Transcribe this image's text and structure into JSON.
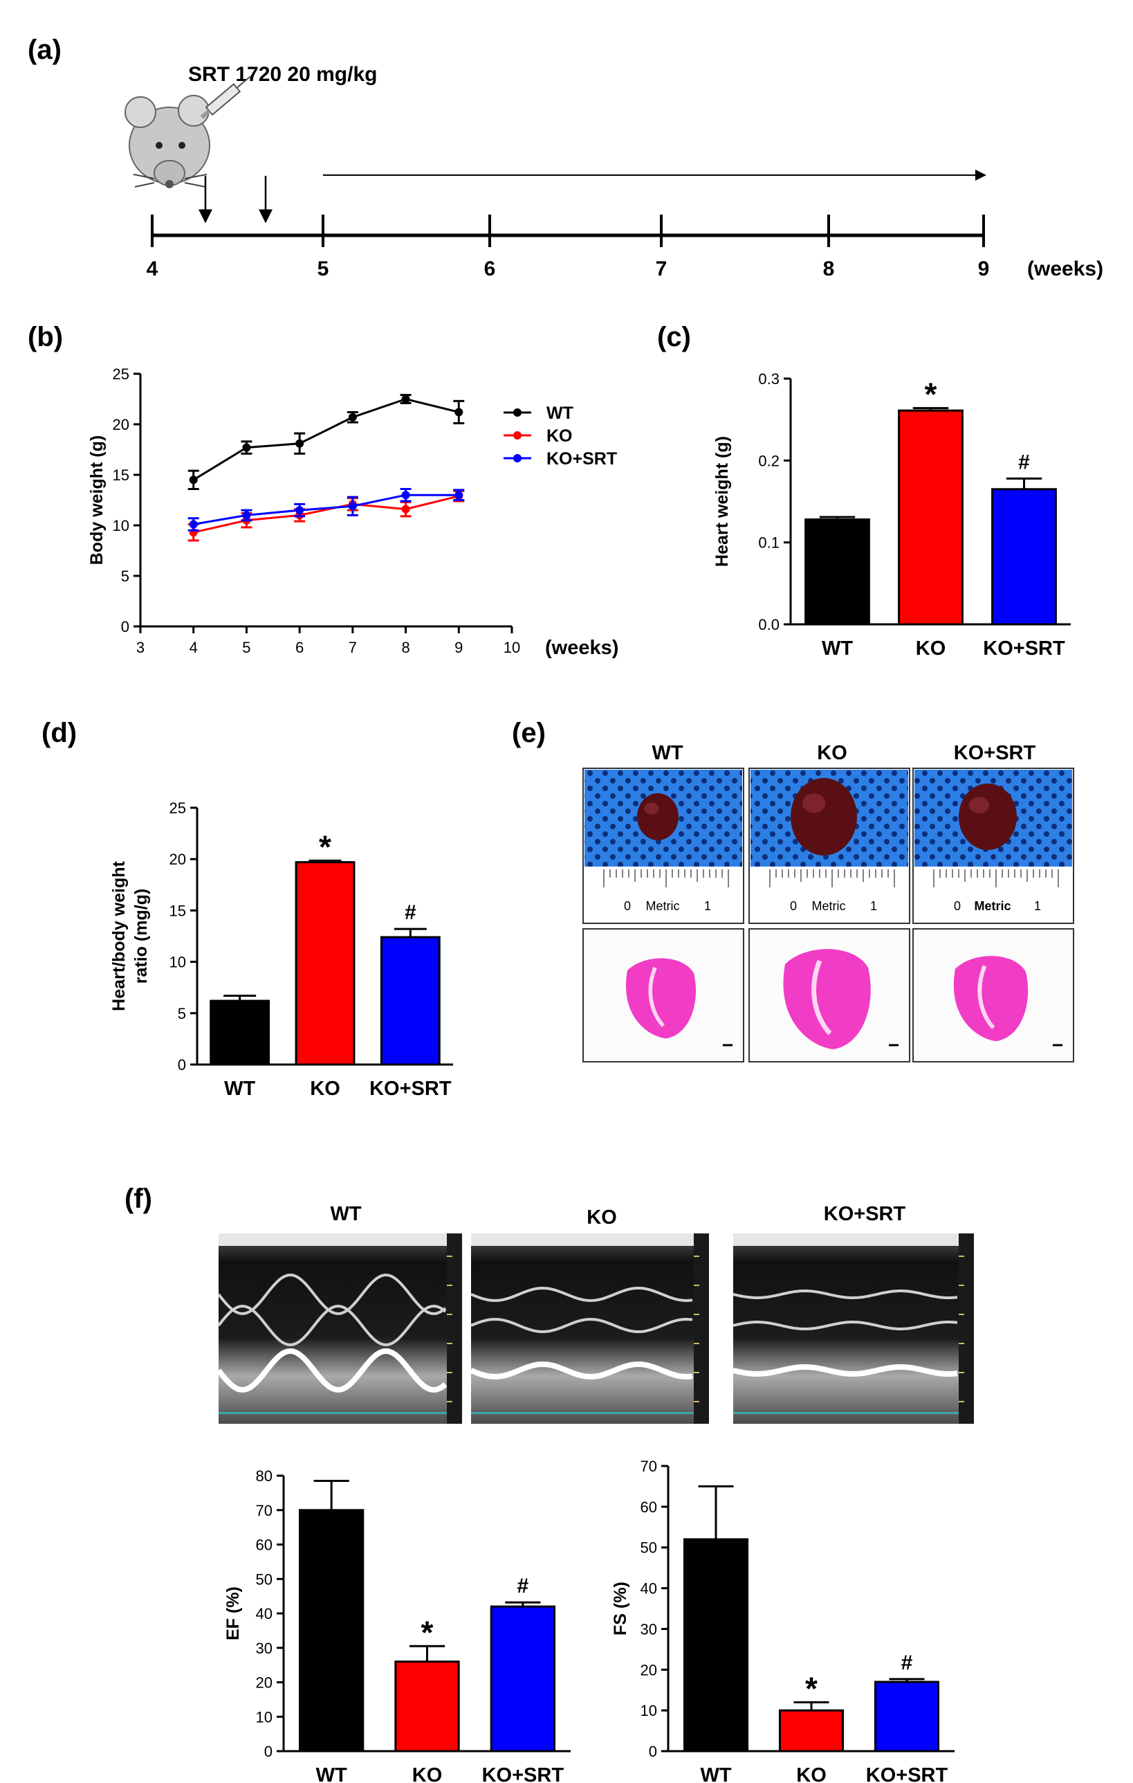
{
  "panel_labels": {
    "a": "(a)",
    "b": "(b)",
    "c": "(c)",
    "d": "(d)",
    "e": "(e)",
    "f": "(f)"
  },
  "colors": {
    "wt": "#000000",
    "ko": "#ff0000",
    "ko_srt": "#0000ff"
  },
  "timeline": {
    "treatment_label": "SRT 1720 20 mg/kg",
    "ticks": [
      "4",
      "5",
      "6",
      "7",
      "8",
      "9"
    ],
    "unit": "(weeks)",
    "icons": [
      "mouse-icon",
      "syringe-icon"
    ]
  },
  "photos": {
    "titles": [
      "WT",
      "KO",
      "KO+SRT"
    ],
    "ruler_zero": "0",
    "ruler_metric": "Metric",
    "ruler_one": "1"
  },
  "echo": {
    "titles": [
      "WT",
      "KO",
      "KO+SRT"
    ]
  },
  "chart_data": [
    {
      "id": "b",
      "type": "line",
      "title": "",
      "xlabel": "(weeks)",
      "ylabel": "Body weight (g)",
      "x": [
        4,
        5,
        6,
        7,
        8,
        9
      ],
      "xlim": [
        3,
        10
      ],
      "ylim": [
        0,
        25
      ],
      "xticks": [
        "3",
        "4",
        "5",
        "6",
        "7",
        "8",
        "9",
        "10"
      ],
      "yticks": [
        "0",
        "5",
        "10",
        "15",
        "20",
        "25"
      ],
      "legend_position": "top-right",
      "series": [
        {
          "name": "WT",
          "color": "#000000",
          "values": [
            14.5,
            17.7,
            18.1,
            20.7,
            22.5,
            21.2
          ],
          "errors": [
            0.9,
            0.6,
            1.0,
            0.5,
            0.4,
            1.1
          ]
        },
        {
          "name": "KO",
          "color": "#ff0000",
          "values": [
            9.3,
            10.5,
            11.0,
            12.1,
            11.6,
            12.9
          ],
          "errors": [
            0.8,
            0.7,
            0.6,
            0.6,
            0.7,
            0.5
          ]
        },
        {
          "name": "KO+SRT",
          "color": "#0000ff",
          "values": [
            10.1,
            11.0,
            11.5,
            11.9,
            13.0,
            13.0
          ],
          "errors": [
            0.6,
            0.5,
            0.6,
            0.9,
            0.6,
            0.5
          ]
        }
      ]
    },
    {
      "id": "c",
      "type": "bar",
      "ylabel": "Heart weight (g)",
      "categories": [
        "WT",
        "KO",
        "KO+SRT"
      ],
      "values": [
        0.128,
        0.261,
        0.165
      ],
      "errors": [
        0.003,
        0.003,
        0.013
      ],
      "colors": [
        "#000000",
        "#ff0000",
        "#0000ff"
      ],
      "significance": [
        "",
        "*",
        "#"
      ],
      "ylim": [
        0,
        0.3
      ],
      "yticks": [
        "0.0",
        "0.1",
        "0.2",
        "0.3"
      ]
    },
    {
      "id": "d",
      "type": "bar",
      "ylabel_lines": [
        "Heart/body weight",
        "ratio (mg/g)"
      ],
      "categories": [
        "WT",
        "KO",
        "KO+SRT"
      ],
      "values": [
        6.2,
        19.7,
        12.4
      ],
      "errors": [
        0.5,
        0.15,
        0.8
      ],
      "colors": [
        "#000000",
        "#ff0000",
        "#0000ff"
      ],
      "significance": [
        "",
        "*",
        "#"
      ],
      "ylim": [
        0,
        25
      ],
      "yticks": [
        "0",
        "5",
        "10",
        "15",
        "20",
        "25"
      ]
    },
    {
      "id": "f-ef",
      "type": "bar",
      "ylabel": "EF (%)",
      "categories": [
        "WT",
        "KO",
        "KO+SRT"
      ],
      "values": [
        70,
        26,
        42
      ],
      "errors": [
        8.5,
        4.5,
        1.2
      ],
      "colors": [
        "#000000",
        "#ff0000",
        "#0000ff"
      ],
      "significance": [
        "",
        "*",
        "#"
      ],
      "ylim": [
        0,
        80
      ],
      "yticks": [
        "0",
        "10",
        "20",
        "30",
        "40",
        "50",
        "60",
        "70",
        "80"
      ]
    },
    {
      "id": "f-fs",
      "type": "bar",
      "ylabel": "FS (%)",
      "categories": [
        "WT",
        "KO",
        "KO+SRT"
      ],
      "values": [
        52,
        10,
        17
      ],
      "errors": [
        13,
        2,
        0.7
      ],
      "colors": [
        "#000000",
        "#ff0000",
        "#0000ff"
      ],
      "significance": [
        "",
        "*",
        "#"
      ],
      "ylim": [
        0,
        70
      ],
      "yticks": [
        "0",
        "10",
        "20",
        "30",
        "40",
        "50",
        "60",
        "70"
      ]
    }
  ]
}
